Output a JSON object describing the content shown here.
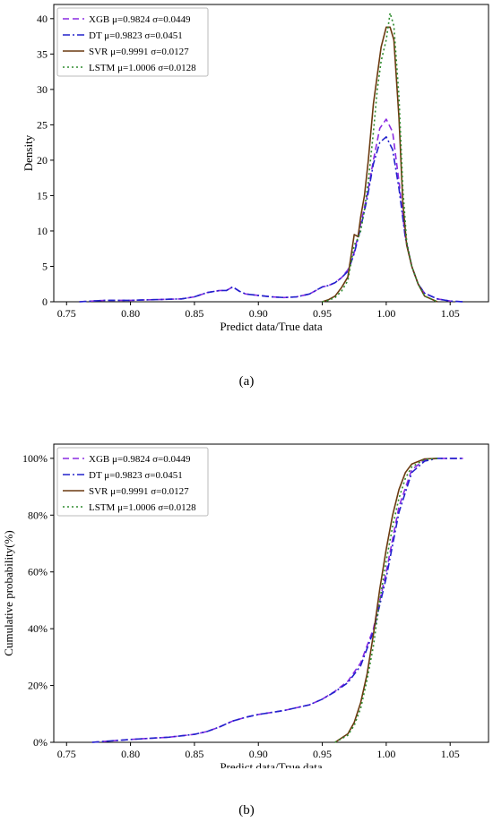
{
  "panel_labels": [
    "(a)",
    "(b)"
  ],
  "chart_data": [
    {
      "type": "line",
      "panel": "(a)",
      "xlabel": "Predict data/True data",
      "ylabel": "Density",
      "xlim": [
        0.74,
        1.08
      ],
      "ylim": [
        0,
        42
      ],
      "x_ticks": [
        0.75,
        0.8,
        0.85,
        0.9,
        0.95,
        1.0,
        1.05
      ],
      "y_ticks": [
        0,
        5,
        10,
        15,
        20,
        25,
        30,
        35,
        40
      ],
      "grid": false,
      "legend": "top-left",
      "series": [
        {
          "name": "XGB μ=0.9824 σ=0.0449",
          "color": "#8a2be2",
          "style": "dashed",
          "x": [
            0.76,
            0.78,
            0.8,
            0.82,
            0.84,
            0.85,
            0.86,
            0.87,
            0.875,
            0.88,
            0.885,
            0.89,
            0.9,
            0.91,
            0.92,
            0.93,
            0.94,
            0.945,
            0.95,
            0.955,
            0.96,
            0.965,
            0.97,
            0.975,
            0.98,
            0.985,
            0.99,
            0.995,
            1.0,
            1.005,
            1.01,
            1.015,
            1.02,
            1.025,
            1.03,
            1.04,
            1.05,
            1.06
          ],
          "y": [
            0,
            0.2,
            0.2,
            0.3,
            0.4,
            0.7,
            1.3,
            1.6,
            1.6,
            2.1,
            1.5,
            1.1,
            0.9,
            0.7,
            0.6,
            0.7,
            1.1,
            1.6,
            2.1,
            2.3,
            2.7,
            3.4,
            4.5,
            7,
            11,
            15,
            20,
            24.5,
            25.8,
            24,
            17,
            9,
            5,
            2.5,
            1.2,
            0.4,
            0.1,
            0
          ]
        },
        {
          "name": "DT μ=0.9823 σ=0.0451",
          "color": "#2222cc",
          "style": "dashdot",
          "x": [
            0.76,
            0.78,
            0.8,
            0.82,
            0.84,
            0.85,
            0.86,
            0.87,
            0.875,
            0.88,
            0.885,
            0.89,
            0.9,
            0.91,
            0.92,
            0.93,
            0.94,
            0.945,
            0.95,
            0.955,
            0.96,
            0.965,
            0.97,
            0.975,
            0.98,
            0.985,
            0.99,
            0.995,
            1.0,
            1.005,
            1.01,
            1.015,
            1.02,
            1.025,
            1.03,
            1.04,
            1.05,
            1.06
          ],
          "y": [
            0,
            0.2,
            0.2,
            0.3,
            0.4,
            0.7,
            1.3,
            1.6,
            1.6,
            2.1,
            1.5,
            1.1,
            0.9,
            0.7,
            0.6,
            0.7,
            1.1,
            1.6,
            2.1,
            2.3,
            2.7,
            3.4,
            4.3,
            6.8,
            10.5,
            14.5,
            19.5,
            22.5,
            23.3,
            21.5,
            16,
            9,
            5,
            2.5,
            1.2,
            0.4,
            0.1,
            0
          ]
        },
        {
          "name": "SVR μ=0.9991 σ=0.0127",
          "color": "#6b3a10",
          "style": "solid",
          "x": [
            0.95,
            0.955,
            0.96,
            0.965,
            0.97,
            0.975,
            0.978,
            0.98,
            0.983,
            0.986,
            0.99,
            0.993,
            0.996,
            1.0,
            1.003,
            1.006,
            1.01,
            1.013,
            1.016,
            1.02,
            1.025,
            1.03,
            1.04
          ],
          "y": [
            0,
            0.3,
            0.8,
            2,
            3.5,
            9.5,
            9.2,
            12,
            15,
            20,
            28,
            32,
            36,
            38.8,
            38.8,
            37,
            26,
            14,
            8,
            5,
            2.5,
            0.8,
            0
          ]
        },
        {
          "name": "LSTM μ=1.0006 σ=0.0128",
          "color": "#2e8b2e",
          "style": "dotted",
          "x": [
            0.95,
            0.955,
            0.96,
            0.965,
            0.97,
            0.975,
            0.978,
            0.98,
            0.983,
            0.986,
            0.99,
            0.993,
            0.996,
            1.0,
            1.003,
            1.006,
            1.01,
            1.013,
            1.016,
            1.02,
            1.025,
            1.03,
            1.04
          ],
          "y": [
            0,
            0.2,
            0.6,
            1.5,
            3,
            8,
            9,
            10,
            13,
            17,
            24,
            30,
            34,
            37,
            40.8,
            39,
            29,
            16,
            8.5,
            5,
            2.5,
            0.8,
            0
          ]
        }
      ]
    },
    {
      "type": "line",
      "panel": "(b)",
      "xlabel": "Predict data/True data",
      "ylabel": "Cumulative probability(%)",
      "xlim": [
        0.74,
        1.08
      ],
      "ylim": [
        0,
        105
      ],
      "x_ticks": [
        0.75,
        0.8,
        0.85,
        0.9,
        0.95,
        1.0,
        1.05
      ],
      "y_ticks": [
        0,
        20,
        40,
        60,
        80,
        100
      ],
      "y_tick_labels": [
        "0%",
        "20%",
        "40%",
        "60%",
        "80%",
        "100%"
      ],
      "grid": false,
      "legend": "top-left",
      "series": [
        {
          "name": "XGB μ=0.9824 σ=0.0449",
          "color": "#8a2be2",
          "style": "dashed",
          "x": [
            0.77,
            0.8,
            0.83,
            0.85,
            0.86,
            0.87,
            0.88,
            0.89,
            0.9,
            0.92,
            0.94,
            0.95,
            0.96,
            0.97,
            0.98,
            0.99,
            1.0,
            1.01,
            1.02,
            1.03,
            1.04,
            1.06
          ],
          "y": [
            0,
            1,
            1.8,
            2.8,
            3.8,
            5.5,
            7.5,
            8.8,
            9.8,
            11.2,
            13.2,
            15.2,
            18,
            21.5,
            28,
            40,
            60,
            83,
            96,
            99.5,
            100,
            100
          ]
        },
        {
          "name": "DT μ=0.9823 σ=0.0451",
          "color": "#2222cc",
          "style": "dashdot",
          "x": [
            0.77,
            0.8,
            0.83,
            0.85,
            0.86,
            0.87,
            0.88,
            0.89,
            0.9,
            0.92,
            0.94,
            0.95,
            0.96,
            0.97,
            0.98,
            0.99,
            1.0,
            1.01,
            1.02,
            1.03,
            1.04,
            1.06
          ],
          "y": [
            0,
            1,
            1.8,
            2.8,
            3.8,
            5.5,
            7.5,
            8.8,
            9.8,
            11.2,
            13.2,
            15.2,
            17.8,
            21,
            27,
            39,
            58,
            81,
            95,
            99,
            100,
            100
          ]
        },
        {
          "name": "SVR μ=0.9991 σ=0.0127",
          "color": "#6b3a10",
          "style": "solid",
          "x": [
            0.96,
            0.97,
            0.975,
            0.98,
            0.985,
            0.99,
            0.995,
            1.0,
            1.005,
            1.01,
            1.015,
            1.02,
            1.03,
            1.04
          ],
          "y": [
            0,
            3,
            7,
            14,
            24,
            38,
            54,
            68,
            80,
            89,
            95,
            98,
            99.8,
            100
          ]
        },
        {
          "name": "LSTM μ=1.0006 σ=0.0128",
          "color": "#2e8b2e",
          "style": "dotted",
          "x": [
            0.96,
            0.97,
            0.975,
            0.98,
            0.985,
            0.99,
            0.995,
            1.0,
            1.005,
            1.01,
            1.015,
            1.02,
            1.03,
            1.04
          ],
          "y": [
            0,
            2.5,
            6,
            12,
            22,
            34,
            50,
            64,
            76,
            86,
            93,
            97,
            99.6,
            100
          ]
        }
      ]
    }
  ]
}
